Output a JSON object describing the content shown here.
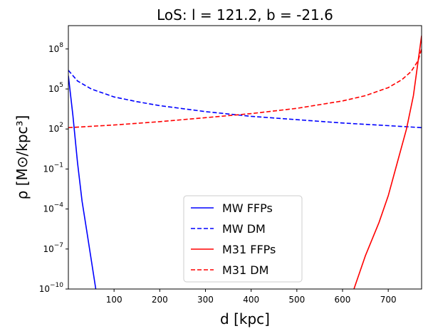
{
  "chart_data": {
    "type": "line",
    "title": "LoS: l = 121.2, b = -21.6",
    "xlabel": "d [kpc]",
    "ylabel": "ρ [M⊙/kpc³]",
    "xlim": [
      0,
      773
    ],
    "ylim_log10": [
      -10,
      9.75
    ],
    "yscale": "log",
    "grid": false,
    "legend_position": "lower center",
    "x_ticks": [
      100,
      200,
      300,
      400,
      500,
      600,
      700
    ],
    "y_ticks_exponent": [
      8,
      5,
      2,
      -1,
      -4,
      -7,
      -10
    ],
    "series": [
      {
        "name": "MW FFPs",
        "color": "#0000ff",
        "style": "solid",
        "points_log10": [
          [
            0,
            6.0
          ],
          [
            10,
            3.0
          ],
          [
            20,
            -0.5
          ],
          [
            30,
            -3.4
          ],
          [
            40,
            -5.6
          ],
          [
            50,
            -7.8
          ],
          [
            60,
            -10.0
          ]
        ]
      },
      {
        "name": "MW DM",
        "color": "#0000ff",
        "style": "dashed",
        "points_log10": [
          [
            0,
            6.4
          ],
          [
            20,
            5.6
          ],
          [
            50,
            5.0
          ],
          [
            100,
            4.4
          ],
          [
            150,
            4.05
          ],
          [
            200,
            3.75
          ],
          [
            300,
            3.3
          ],
          [
            400,
            2.95
          ],
          [
            500,
            2.7
          ],
          [
            600,
            2.45
          ],
          [
            700,
            2.25
          ],
          [
            773,
            2.1
          ]
        ]
      },
      {
        "name": "M31 FFPs",
        "color": "#ff0000",
        "style": "solid",
        "points_log10": [
          [
            625,
            -10.0
          ],
          [
            650,
            -7.5
          ],
          [
            680,
            -5.0
          ],
          [
            700,
            -3.0
          ],
          [
            720,
            -0.5
          ],
          [
            740,
            2.0
          ],
          [
            755,
            4.5
          ],
          [
            765,
            7.0
          ],
          [
            773,
            9.0
          ]
        ]
      },
      {
        "name": "M31 DM",
        "color": "#ff0000",
        "style": "dashed",
        "points_log10": [
          [
            0,
            2.1
          ],
          [
            100,
            2.3
          ],
          [
            200,
            2.55
          ],
          [
            300,
            2.85
          ],
          [
            400,
            3.15
          ],
          [
            500,
            3.55
          ],
          [
            600,
            4.1
          ],
          [
            650,
            4.5
          ],
          [
            700,
            5.1
          ],
          [
            730,
            5.7
          ],
          [
            750,
            6.3
          ],
          [
            765,
            7.1
          ],
          [
            773,
            8.0
          ]
        ]
      }
    ]
  }
}
